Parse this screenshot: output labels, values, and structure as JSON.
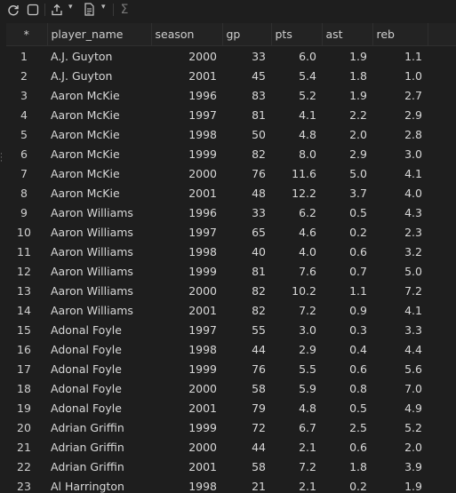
{
  "toolbar": {
    "icons": [
      "refresh-icon",
      "stop-icon",
      "export-icon",
      "file-icon",
      "sigma-icon"
    ]
  },
  "table": {
    "columns": [
      "*",
      "player_name",
      "season",
      "gp",
      "pts",
      "ast",
      "reb"
    ],
    "rows": [
      [
        "1",
        "A.J. Guyton",
        "2000",
        "33",
        "6.0",
        "1.9",
        "1.1"
      ],
      [
        "2",
        "A.J. Guyton",
        "2001",
        "45",
        "5.4",
        "1.8",
        "1.0"
      ],
      [
        "3",
        "Aaron McKie",
        "1996",
        "83",
        "5.2",
        "1.9",
        "2.7"
      ],
      [
        "4",
        "Aaron McKie",
        "1997",
        "81",
        "4.1",
        "2.2",
        "2.9"
      ],
      [
        "5",
        "Aaron McKie",
        "1998",
        "50",
        "4.8",
        "2.0",
        "2.8"
      ],
      [
        "6",
        "Aaron McKie",
        "1999",
        "82",
        "8.0",
        "2.9",
        "3.0"
      ],
      [
        "7",
        "Aaron McKie",
        "2000",
        "76",
        "11.6",
        "5.0",
        "4.1"
      ],
      [
        "8",
        "Aaron McKie",
        "2001",
        "48",
        "12.2",
        "3.7",
        "4.0"
      ],
      [
        "9",
        "Aaron Williams",
        "1996",
        "33",
        "6.2",
        "0.5",
        "4.3"
      ],
      [
        "10",
        "Aaron Williams",
        "1997",
        "65",
        "4.6",
        "0.2",
        "2.3"
      ],
      [
        "11",
        "Aaron Williams",
        "1998",
        "40",
        "4.0",
        "0.6",
        "3.2"
      ],
      [
        "12",
        "Aaron Williams",
        "1999",
        "81",
        "7.6",
        "0.7",
        "5.0"
      ],
      [
        "13",
        "Aaron Williams",
        "2000",
        "82",
        "10.2",
        "1.1",
        "7.2"
      ],
      [
        "14",
        "Aaron Williams",
        "2001",
        "82",
        "7.2",
        "0.9",
        "4.1"
      ],
      [
        "15",
        "Adonal Foyle",
        "1997",
        "55",
        "3.0",
        "0.3",
        "3.3"
      ],
      [
        "16",
        "Adonal Foyle",
        "1998",
        "44",
        "2.9",
        "0.4",
        "4.4"
      ],
      [
        "17",
        "Adonal Foyle",
        "1999",
        "76",
        "5.5",
        "0.6",
        "5.6"
      ],
      [
        "18",
        "Adonal Foyle",
        "2000",
        "58",
        "5.9",
        "0.8",
        "7.0"
      ],
      [
        "19",
        "Adonal Foyle",
        "2001",
        "79",
        "4.8",
        "0.5",
        "4.9"
      ],
      [
        "20",
        "Adrian Griffin",
        "1999",
        "72",
        "6.7",
        "2.5",
        "5.2"
      ],
      [
        "21",
        "Adrian Griffin",
        "2000",
        "44",
        "2.1",
        "0.6",
        "2.0"
      ],
      [
        "22",
        "Adrian Griffin",
        "2001",
        "58",
        "7.2",
        "1.8",
        "3.9"
      ],
      [
        "23",
        "Al Harrington",
        "1998",
        "21",
        "2.1",
        "0.2",
        "1.9"
      ]
    ]
  }
}
